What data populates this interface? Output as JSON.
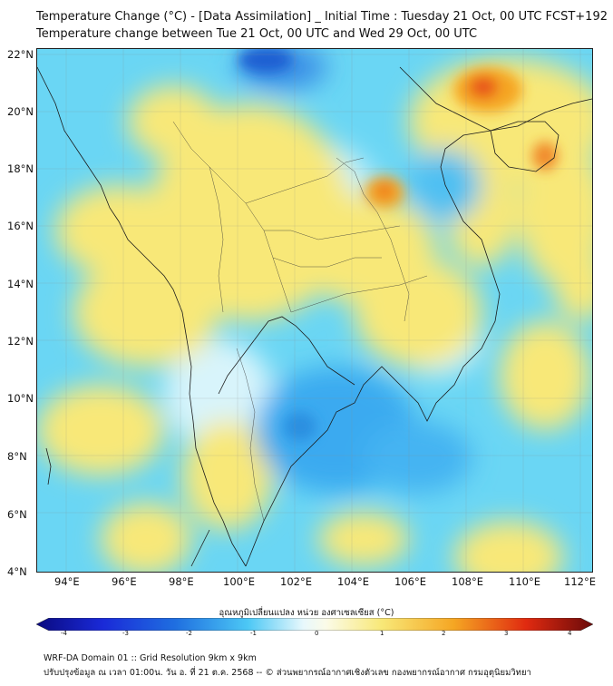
{
  "title_line1": "Temperature Change (°C) - [Data Assimilation] _ Initial Time : Tuesday 21 Oct, 00 UTC FCST+192",
  "title_line2": "Temperature change between Tue 21 Oct, 00 UTC and Wed 29 Oct, 00 UTC",
  "map": {
    "extent": {
      "lon": [
        93,
        112.5
      ],
      "lat": [
        4,
        22.2
      ]
    },
    "lat_labels": [
      "22°N",
      "20°N",
      "18°N",
      "16°N",
      "14°N",
      "12°N",
      "10°N",
      "8°N",
      "6°N",
      "4°N"
    ],
    "lon_labels": [
      "94°E",
      "96°E",
      "98°E",
      "100°E",
      "102°E",
      "104°E",
      "106°E",
      "108°E",
      "110°E",
      "112°E"
    ],
    "colors": {
      "background": "#6ad6f4",
      "warm": "#f8e878",
      "hot": "#f5a623",
      "hotter": "#e8521c",
      "cold": "#2a8fe0",
      "coldest": "#1f5fd2",
      "coast": "#1a1a1a"
    }
  },
  "colorbar": {
    "title": "อุณหภูมิเปลี่ยนแปลง หน่วย องศาเซลเซียส (°C)",
    "ticks": [
      "-4",
      "-3",
      "-2",
      "-1",
      "0",
      "1",
      "2",
      "3",
      "4"
    ],
    "min": -4,
    "max": 4
  },
  "footer_line1": "WRF-DA Domain 01 :: Grid Resolution 9km x 9km",
  "footer_line2": "ปรับปรุงข้อมูล ณ เวลา 01:00น. วัน อ. ที่ 21 ต.ค. 2568 -- © ส่วนพยากรณ์อากาศเชิงตัวเลข กองพยากรณ์อากาศ กรมอุตุนิยมวิทยา"
}
